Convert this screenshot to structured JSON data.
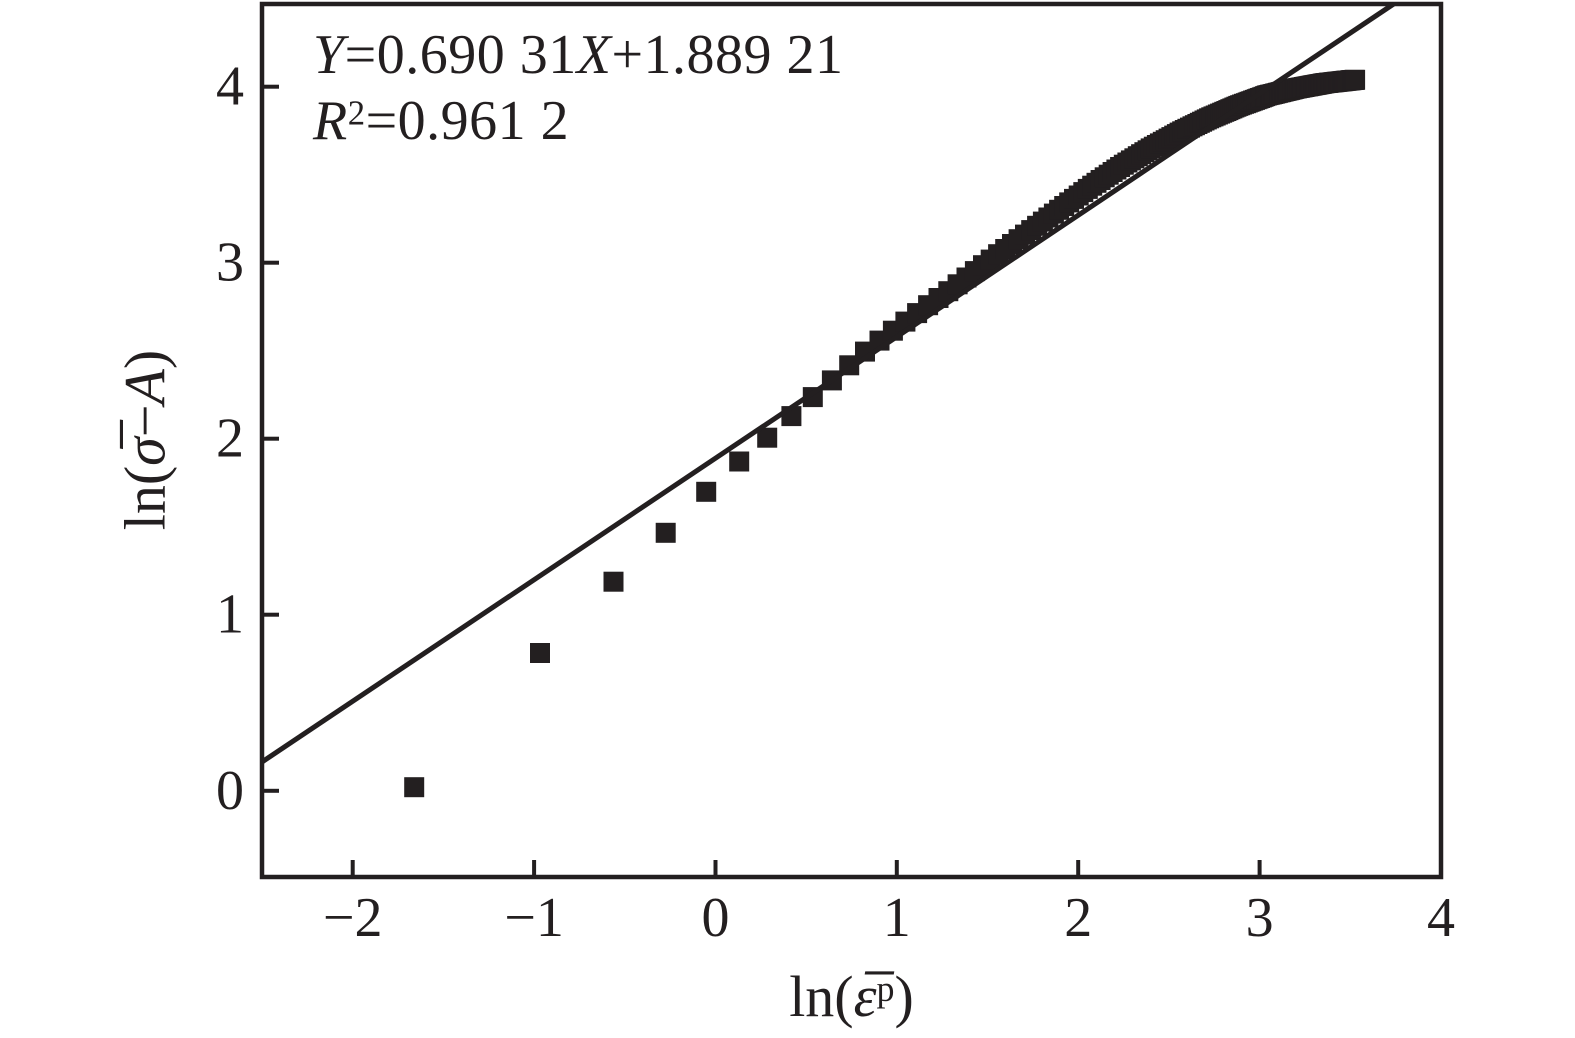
{
  "chart_data": {
    "type": "scatter",
    "description": "log-log linear fit of flow stress hardening data: experimental points (black squares) with least-squares fit line",
    "annotation": {
      "y_var": "Y",
      "eq1": "=0.690 31",
      "x_var": "X",
      "eq2": "+1.889 21",
      "r_var": "R",
      "r_sup": "2",
      "r_rest": "=0.961 2"
    },
    "fit_line": {
      "slope": 0.69031,
      "intercept": 1.88921,
      "r_squared": 0.9612
    },
    "x_axis": {
      "title_pre": "ln(",
      "title_sym": "ε̅",
      "title_sup": "p",
      "title_post": ")",
      "lim": [
        -2.5,
        4.0
      ],
      "ticks": [
        {
          "v": -2,
          "label": "−2"
        },
        {
          "v": -1,
          "label": "−1"
        },
        {
          "v": 0,
          "label": "0"
        },
        {
          "v": 1,
          "label": "1"
        },
        {
          "v": 2,
          "label": "2"
        },
        {
          "v": 3,
          "label": "3"
        },
        {
          "v": 4,
          "label": "4"
        }
      ]
    },
    "y_axis": {
      "title_pre": "ln(",
      "title_sym": "σ̅",
      "title_minus": "−",
      "title_var": "A",
      "title_post": ")",
      "lim": [
        -0.49,
        4.47
      ],
      "ticks": [
        {
          "v": 0,
          "label": "0"
        },
        {
          "v": 1,
          "label": "1"
        },
        {
          "v": 2,
          "label": "2"
        },
        {
          "v": 3,
          "label": "3"
        },
        {
          "v": 4,
          "label": "4"
        }
      ]
    },
    "series": [
      {
        "name": "experimental-points",
        "marker": "square",
        "marker_size_px": 20,
        "x_rule": {
          "type": "ln_scaled_index",
          "scale": 0.19,
          "k_min": 1,
          "k_max": 179
        },
        "curve_anchors": [
          [
            -1.66,
            0.02
          ],
          [
            -0.97,
            0.78
          ],
          [
            -0.56,
            1.19
          ],
          [
            -0.27,
            1.47
          ],
          [
            -0.05,
            1.7
          ],
          [
            0.13,
            1.87
          ],
          [
            0.29,
            2.01
          ],
          [
            0.42,
            2.13
          ],
          [
            0.54,
            2.24
          ],
          [
            0.64,
            2.33
          ],
          [
            0.74,
            2.42
          ],
          [
            0.83,
            2.5
          ],
          [
            0.92,
            2.57
          ],
          [
            1.0,
            2.63
          ],
          [
            1.08,
            2.69
          ],
          [
            1.16,
            2.75
          ],
          [
            1.23,
            2.8
          ],
          [
            1.3,
            2.85
          ],
          [
            1.44,
            2.96
          ],
          [
            1.6,
            3.08
          ],
          [
            1.76,
            3.2
          ],
          [
            1.92,
            3.32
          ],
          [
            2.08,
            3.44
          ],
          [
            2.24,
            3.55
          ],
          [
            2.4,
            3.65
          ],
          [
            2.56,
            3.74
          ],
          [
            2.72,
            3.82
          ],
          [
            2.88,
            3.89
          ],
          [
            3.04,
            3.95
          ],
          [
            3.2,
            3.99
          ],
          [
            3.36,
            4.02
          ],
          [
            3.53,
            4.04
          ]
        ]
      }
    ],
    "colors": {
      "ink": "#231f20",
      "background": "#ffffff"
    },
    "grid": false,
    "legend": false
  }
}
